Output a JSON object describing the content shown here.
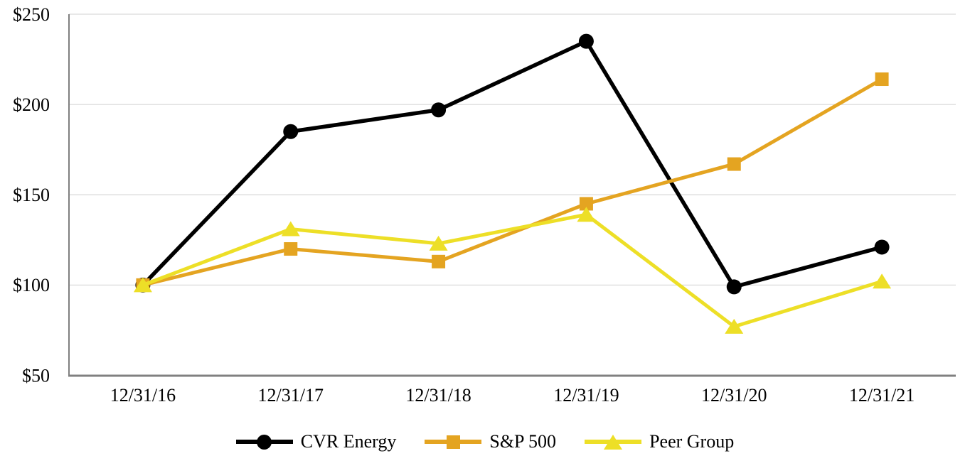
{
  "chart_data": {
    "type": "line",
    "title": "",
    "xlabel": "",
    "ylabel": "",
    "categories": [
      "12/31/16",
      "12/31/17",
      "12/31/18",
      "12/31/19",
      "12/31/20",
      "12/31/21"
    ],
    "series": [
      {
        "name": "CVR Energy",
        "color": "#000000",
        "marker": "circle",
        "values": [
          100,
          185,
          197,
          235,
          99,
          121
        ]
      },
      {
        "name": "S&P 500",
        "color": "#E4A421",
        "marker": "square",
        "values": [
          100,
          120,
          113,
          145,
          167,
          214
        ]
      },
      {
        "name": "Peer Group",
        "color": "#EDDF27",
        "marker": "triangle",
        "values": [
          100,
          131,
          123,
          139,
          77,
          102
        ]
      }
    ],
    "ylim": [
      50,
      250
    ],
    "yticks": [
      50,
      100,
      150,
      200,
      250
    ],
    "ytick_labels": [
      "$50",
      "$100",
      "$150",
      "$200",
      "$250"
    ],
    "grid": true,
    "legend_position": "bottom"
  },
  "colors": {
    "background": "#FFFFFF",
    "gridline": "#D9D9D9",
    "axis": "#808080",
    "text": "#000000"
  }
}
